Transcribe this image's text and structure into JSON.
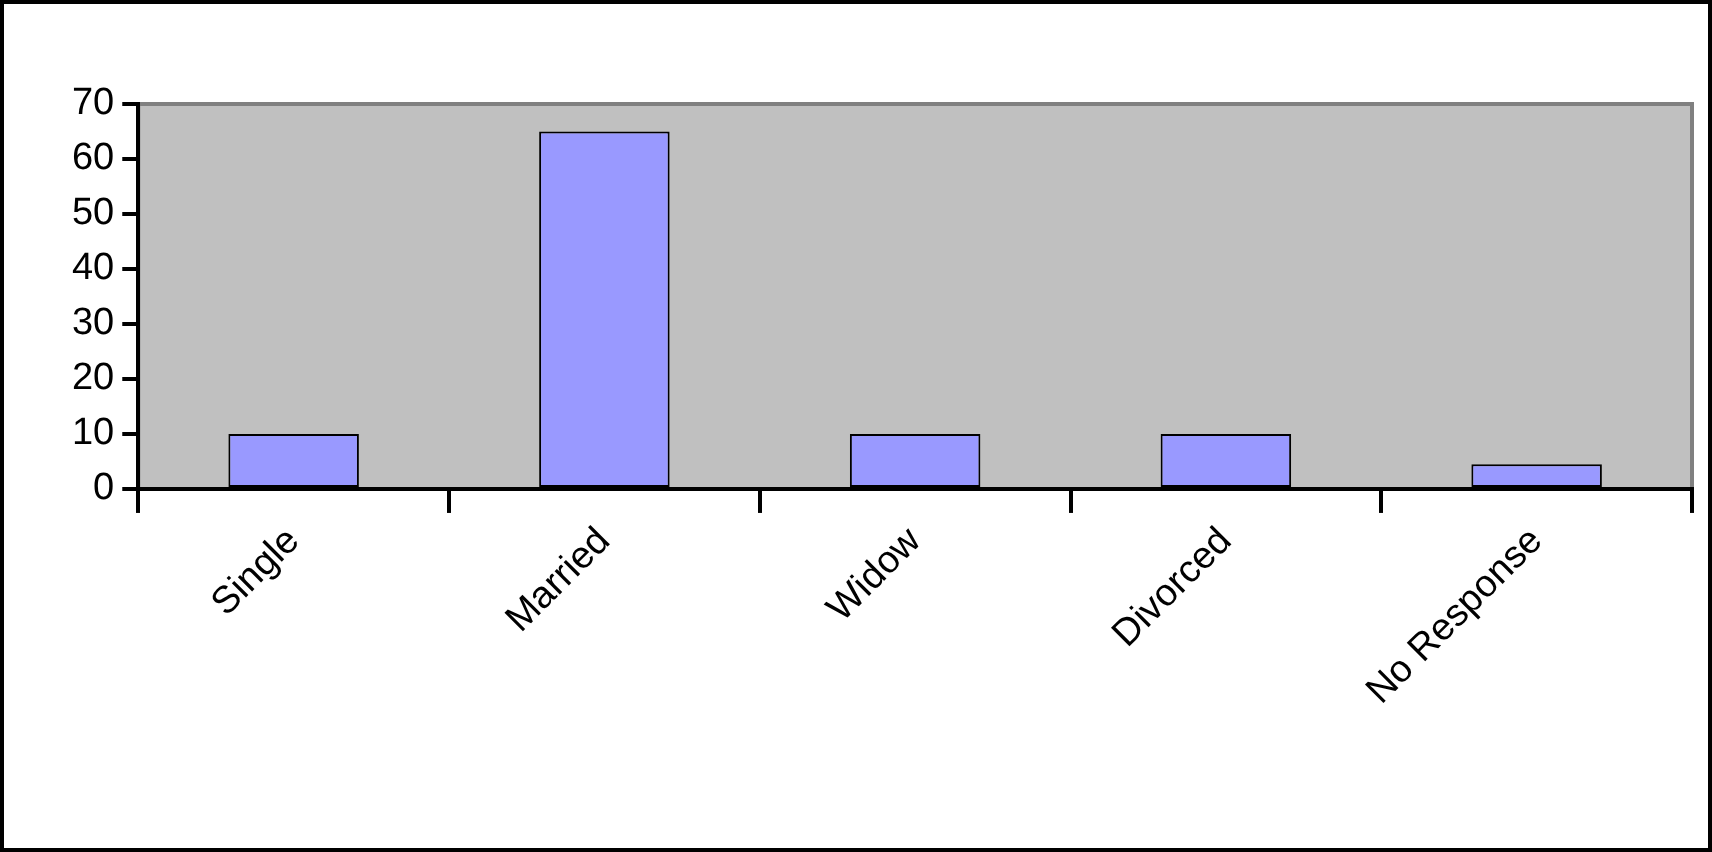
{
  "chart_data": {
    "type": "bar",
    "categories": [
      "Single",
      "Married",
      "Widow",
      "Divorced",
      "No Response"
    ],
    "values": [
      10,
      65,
      10,
      10,
      4.5
    ],
    "color": "#9999ff",
    "ylim": [
      0,
      70
    ],
    "yticks": [
      0,
      10,
      20,
      30,
      40,
      50,
      60,
      70
    ],
    "grid": false,
    "legend": false
  }
}
